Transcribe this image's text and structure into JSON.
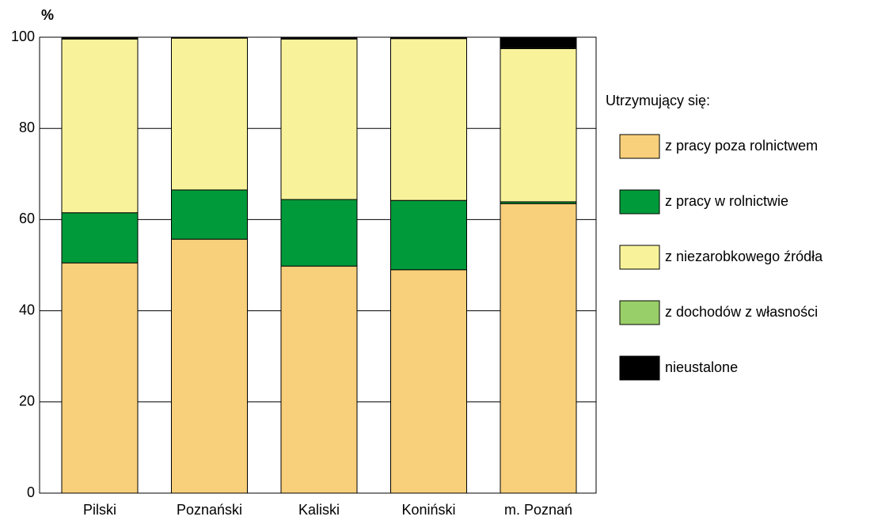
{
  "chart_data": {
    "type": "stacked_bar",
    "ylabel": "%",
    "legend_title": "Utrzymujący się:",
    "categories": [
      "Pilski",
      "Poznański",
      "Kaliski",
      "Koniński",
      "m. Poznań"
    ],
    "series": [
      {
        "name": "z pracy poza rolnictwem",
        "color": "#f8cf7a",
        "values": [
          50.5,
          55.7,
          49.8,
          49.0,
          63.5
        ]
      },
      {
        "name": "z pracy w rolnictwie",
        "color": "#009a3a",
        "values": [
          11.0,
          10.8,
          14.6,
          15.2,
          0.4
        ]
      },
      {
        "name": "z niezarobkowego źródła",
        "color": "#f8f39a",
        "values": [
          38.1,
          33.3,
          35.2,
          35.5,
          33.6
        ]
      },
      {
        "name": "z dochodów  z własności",
        "color": "#98cf68",
        "values": [
          0.0,
          0.0,
          0.0,
          0.0,
          0.2
        ]
      },
      {
        "name": "nieustalone",
        "color": "#000000",
        "values": [
          0.4,
          0.2,
          0.4,
          0.3,
          2.3
        ]
      }
    ],
    "ylim": [
      0,
      100
    ],
    "yticks": [
      0,
      20,
      40,
      60,
      80,
      100
    ],
    "grid": true
  }
}
